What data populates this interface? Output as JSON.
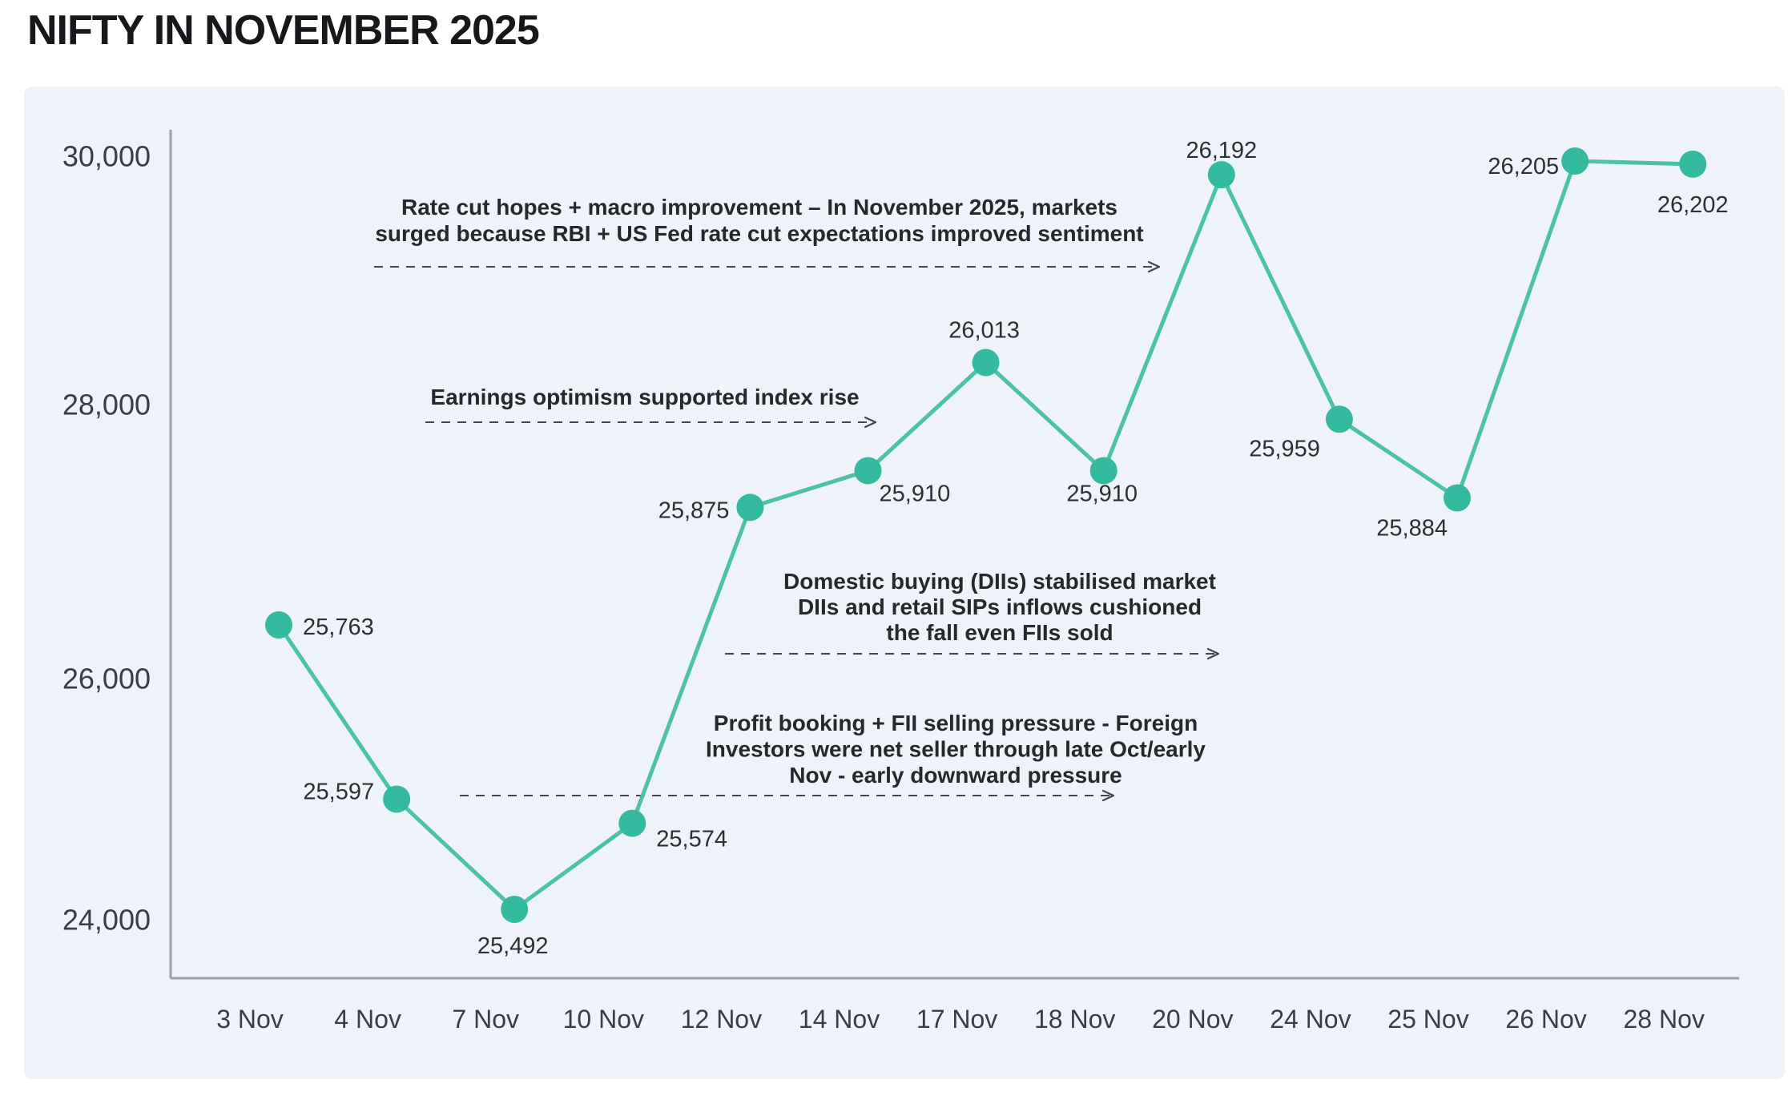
{
  "title": "NIFTY IN NOVEMBER 2025",
  "colors": {
    "page_bg": "#ffffff",
    "panel_bg": "#eef3f9",
    "line": "#4cc3a8",
    "dot": "#34bb9f",
    "axis": "#9aa0a5",
    "tick_text": "#3a3e44",
    "label_text": "#2c2f33",
    "annotation_text": "#25282c",
    "arrow": "#43474c"
  },
  "chart_data": {
    "type": "line",
    "title": "NIFTY IN NOVEMBER 2025",
    "x": [
      "3 Nov",
      "4 Nov",
      "7 Nov",
      "10 Nov",
      "12 Nov",
      "14 Nov",
      "17 Nov",
      "18 Nov",
      "20 Nov",
      "24 Nov",
      "25 Nov",
      "26 Nov",
      "28 Nov"
    ],
    "series": [
      {
        "name": "NIFTY",
        "values": [
          25763,
          25597,
          25492,
          25574,
          25875,
          25910,
          26013,
          25910,
          26192,
          25959,
          25884,
          26205,
          26202
        ]
      }
    ],
    "point_labels": [
      "25,763",
      "25,597",
      "25,492",
      "25,574",
      "25,875",
      "25,910",
      "26,013",
      "25,910",
      "26,192",
      "25,959",
      "25,884",
      "26,205",
      "26,202"
    ],
    "label_side": [
      "right",
      "left",
      "below",
      "right-below",
      "left",
      "below-right",
      "above",
      "below",
      "above",
      "below-left",
      "below-left",
      "left",
      "below"
    ],
    "yticks": [
      "30,000",
      "28,000",
      "26,000",
      "24,000"
    ],
    "ylim": [
      24000,
      30000
    ],
    "xlabel": "",
    "ylabel": "",
    "grid": false,
    "legend_position": "none",
    "annotations": [
      {
        "lines": [
          "Rate cut hopes + macro improvement – In November 2025, markets",
          "surged because RBI + US Fed rate cut expectations improved sentiment"
        ]
      },
      {
        "lines": [
          "Earnings optimism supported index rise"
        ]
      },
      {
        "lines": [
          "Domestic buying (DIIs) stabilised market",
          "DIIs and retail SIPs inflows cushioned",
          "the fall even FIIs sold"
        ]
      },
      {
        "lines": [
          "Profit booking + FII selling pressure - Foreign",
          "Investors were net seller through late Oct/early",
          "Nov - early downward pressure"
        ]
      }
    ]
  }
}
